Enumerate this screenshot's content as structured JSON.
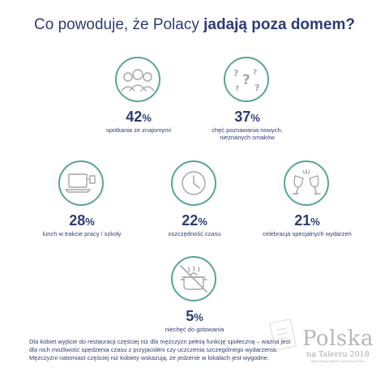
{
  "header": {
    "title_regular": "Co powoduje, że Polacy ",
    "title_bold": "jadają poza domem?"
  },
  "stats": [
    {
      "value": "42",
      "sign": "%",
      "label": "spotkania ze znajomymi",
      "icon": "friends-icon"
    },
    {
      "value": "37",
      "sign": "%",
      "label_line1": "chęć poznawania nowych,",
      "label_line2": "nieznanych smaków",
      "icon": "question-marks-icon"
    },
    {
      "value": "28",
      "sign": "%",
      "label": "lunch w trakcie pracy / szkoły",
      "icon": "laptop-icon"
    },
    {
      "value": "22",
      "sign": "%",
      "label": "oszczędność czasu",
      "icon": "clock-icon"
    },
    {
      "value": "21",
      "sign": "%",
      "label": "celebracja specjalnych wydarzeń",
      "icon": "toast-glasses-icon"
    },
    {
      "value": "5",
      "sign": "%",
      "label": "niechęć do gotowania",
      "icon": "no-cooking-pot-icon"
    }
  ],
  "note": {
    "text": "Dla kobiet wyjście do restauracji częściej niż dla mężczyzn pełnią funkcję społeczną – ważna jest dla nich możliwość spędzenia czasu z przyjaciółmi czy uczczenia szczególnego wydarzenia. Mężczyźni natomiast częściej niż kobiety wskazują, że jedzenie w lokalach jest wygodne."
  },
  "logo": {
    "brand": "Polska",
    "subtitle": "na Talerzu 2018",
    "tagline": "Raport Grupy MAKRO Cash&Carry Polska"
  },
  "colors": {
    "accent": "#5aa58f",
    "text": "#2d3c74",
    "icon_stroke": "#a5a6ad"
  }
}
